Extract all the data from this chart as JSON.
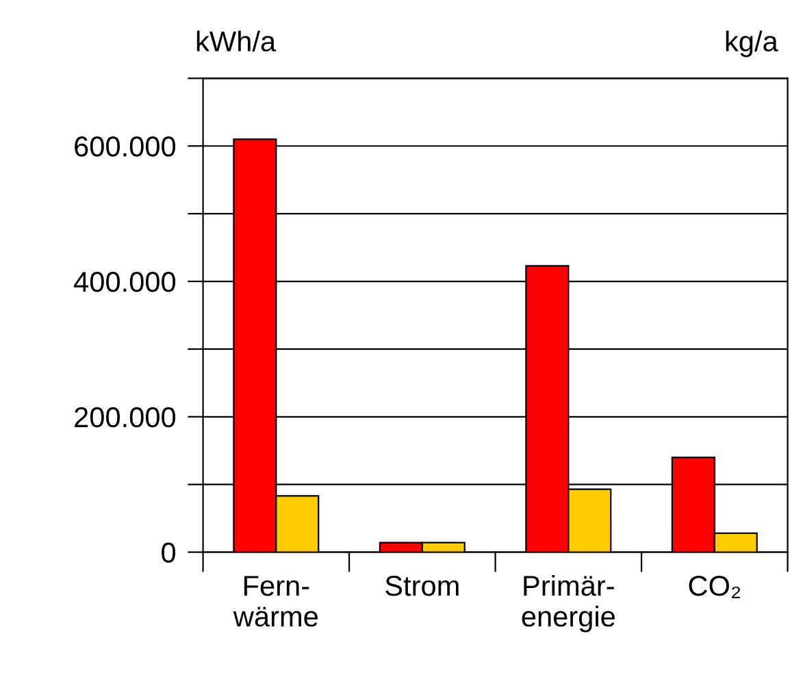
{
  "chart_data": {
    "type": "bar",
    "ylabel": "kWh/a",
    "y2label": "kg/a",
    "categories": [
      "Fern-\nwärme",
      "Strom",
      "Primär-\nenergie",
      "CO₂"
    ],
    "series": [
      {
        "color": "#ff0000",
        "values": [
          610000,
          14000,
          423000,
          140000
        ]
      },
      {
        "color": "#ffcc00",
        "values": [
          83000,
          14000,
          93000,
          28000
        ]
      }
    ],
    "ylim": [
      0,
      700000
    ],
    "yticks": [
      0,
      {
        "value": 100000,
        "label": null
      },
      {
        "value": 200000,
        "label": "200.000"
      },
      {
        "value": 300000,
        "label": null
      },
      {
        "value": 400000,
        "label": "400.000"
      },
      {
        "value": 500000,
        "label": null
      },
      {
        "value": 600000,
        "label": "600.000"
      },
      {
        "value": 700000,
        "label": null
      }
    ],
    "grid": "y",
    "legend": false
  }
}
